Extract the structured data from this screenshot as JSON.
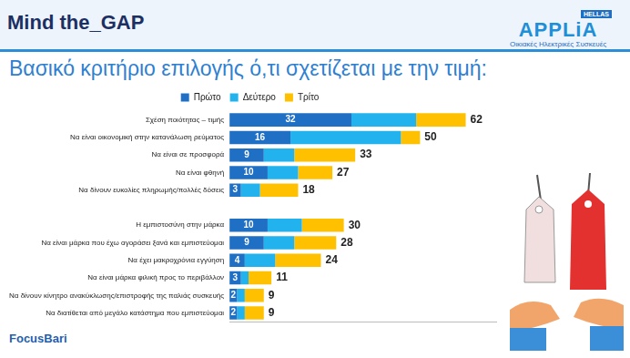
{
  "header": {
    "title": "Mind the_GAP",
    "logo": "APPLiA",
    "logo_badge": "HELLAS",
    "logo_subtitle": "Οικιακές Ηλεκτρικές Συσκευές",
    "source": "FocusBari"
  },
  "chart_data": {
    "type": "bar",
    "orientation": "horizontal",
    "stacked": true,
    "title": "Βασικό κριτήριο επιλογής ό,τι σχετίζεται με την τιμή:",
    "categories": [
      "Σχέση ποιότητας – τιμής",
      "Να είναι οικονομική στην κατανάλωση ρεύματος",
      "Να είναι σε προσφορά",
      "Να είναι φθηνή",
      "Να δίνουν ευκολίες πληρωμής/πολλές δόσεις",
      null,
      "Η εμπιστοσύνη στην μάρκα",
      "Να είναι μάρκα που έχω αγοράσει ξανά και εμπιστεύομαι",
      "Να έχει μακροχρόνια εγγύηση",
      "Να είναι μάρκα φιλική προς το περιβάλλον",
      "Να δίνουν κίνητρο ανακύκλωσης/επιστροφής της παλιάς συσκευής",
      "Να διατίθεται από μεγάλο κατάστημα που εμπιστεύομαι"
    ],
    "series": [
      {
        "name": "Πρώτο",
        "color": "#1f6fc5",
        "data_labels": true,
        "values": [
          32,
          16,
          9,
          10,
          3,
          null,
          10,
          9,
          4,
          3,
          2,
          2
        ]
      },
      {
        "name": "Δεύτερο",
        "color": "#22b3ee",
        "values": [
          17,
          29,
          8,
          8,
          5,
          null,
          9,
          8,
          8,
          2,
          2,
          2
        ]
      },
      {
        "name": "Τρίτο",
        "color": "#ffc000",
        "values": [
          13,
          5,
          16,
          9,
          10,
          null,
          11,
          11,
          12,
          6,
          5,
          5
        ]
      }
    ],
    "totals": [
      62,
      50,
      33,
      27,
      18,
      null,
      30,
      28,
      24,
      11,
      9,
      9
    ],
    "xlim": [
      0,
      70
    ],
    "grid": false,
    "legend": "top",
    "tick_labels": "y"
  }
}
